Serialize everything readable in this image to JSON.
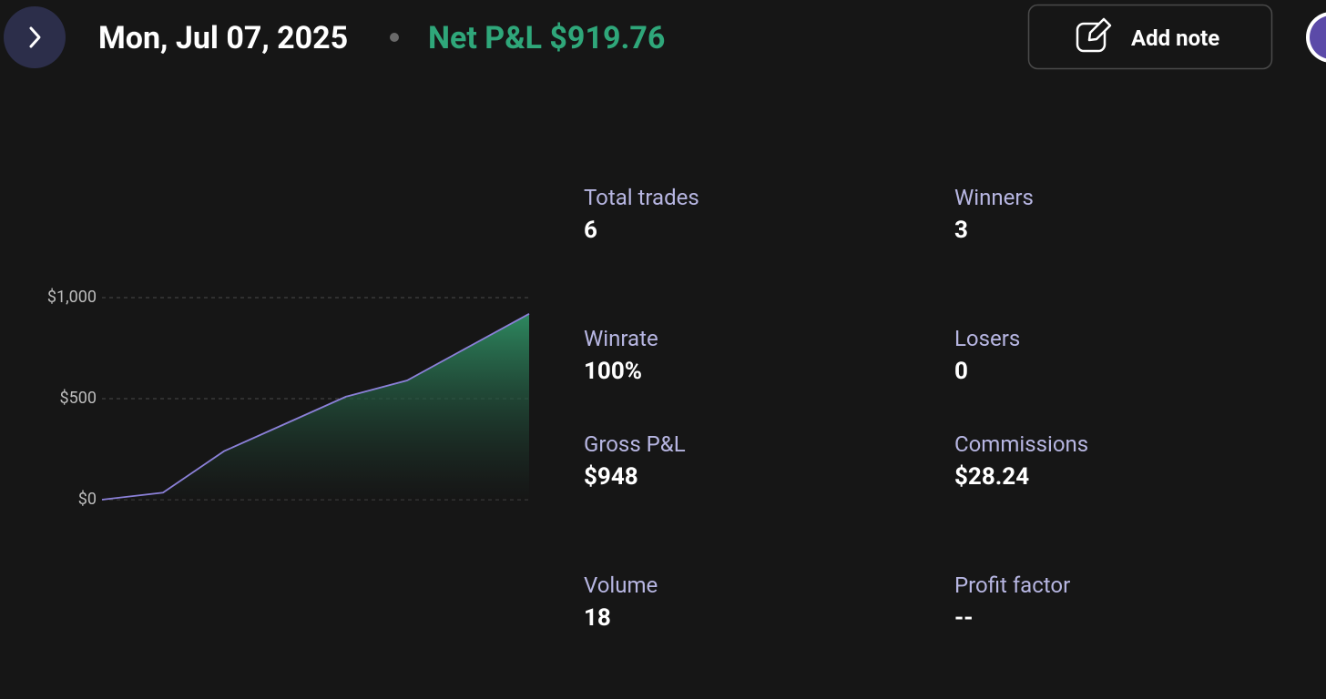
{
  "header": {
    "date": "Mon, Jul 07, 2025",
    "net_pnl": "Net P&L $919.76",
    "add_note": "Add note"
  },
  "chart_data": {
    "type": "area",
    "values": [
      0,
      35,
      240,
      375,
      510,
      590,
      755,
      919.76
    ],
    "color": "#8b80d8",
    "fill_color": "#2f8f64",
    "ylim": [
      0,
      1000
    ],
    "yticks": [
      {
        "value": 0,
        "label": "$0"
      },
      {
        "value": 500,
        "label": "$500"
      },
      {
        "value": 1000,
        "label": "$1,000"
      }
    ],
    "grid": true
  },
  "stats": [
    {
      "label": "Total trades",
      "value": 6
    },
    {
      "label": "Winners",
      "value": 3
    },
    {
      "label": "Winrate",
      "value": "100%"
    },
    {
      "label": "Losers",
      "value": 0
    },
    {
      "label": "Gross P&L",
      "value": "$948"
    },
    {
      "label": "Commissions",
      "value": "$28.24"
    },
    {
      "label": "Volume",
      "value": 18
    },
    {
      "label": "Profit factor",
      "value": "--"
    }
  ]
}
